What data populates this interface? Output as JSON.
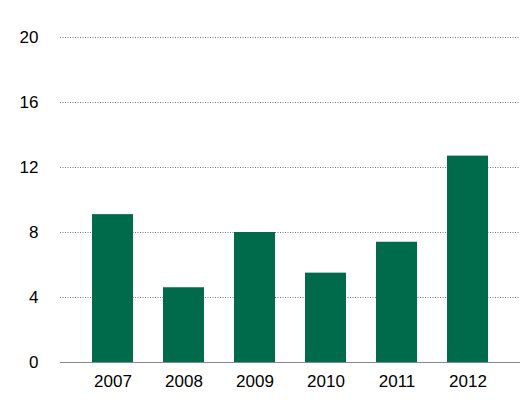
{
  "chart_data": {
    "type": "bar",
    "categories": [
      "2007",
      "2008",
      "2009",
      "2010",
      "2011",
      "2012"
    ],
    "values": [
      9.1,
      4.6,
      8.0,
      5.5,
      7.4,
      12.7
    ],
    "color": "#006b4a",
    "ylim": [
      0,
      20
    ],
    "yticks": [
      0,
      4,
      8,
      12,
      16,
      20
    ],
    "grid": true
  }
}
